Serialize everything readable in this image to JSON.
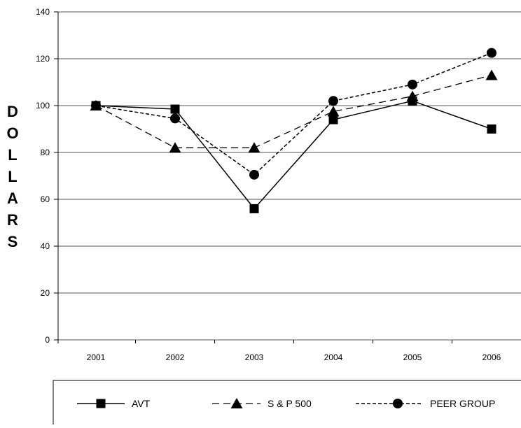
{
  "chart_data": {
    "type": "line",
    "title": "",
    "xlabel": "",
    "ylabel": "DOLLARS",
    "categories": [
      "2001",
      "2002",
      "2003",
      "2004",
      "2005",
      "2006"
    ],
    "ylim": [
      0,
      140
    ],
    "yticks": [
      0,
      20,
      40,
      60,
      80,
      100,
      120,
      140
    ],
    "grid": true,
    "legend_position": "bottom",
    "series": [
      {
        "name": "AVT",
        "values": [
          100,
          98.5,
          56,
          94,
          102,
          90
        ],
        "marker": "square",
        "line": "solid"
      },
      {
        "name": "S & P 500",
        "values": [
          100,
          82,
          82,
          97.5,
          104,
          113
        ],
        "marker": "triangle",
        "line": "dashed"
      },
      {
        "name": "PEER GROUP",
        "values": [
          100,
          94.5,
          70.5,
          102,
          109,
          122.5
        ],
        "marker": "circle",
        "line": "dotted"
      }
    ]
  }
}
